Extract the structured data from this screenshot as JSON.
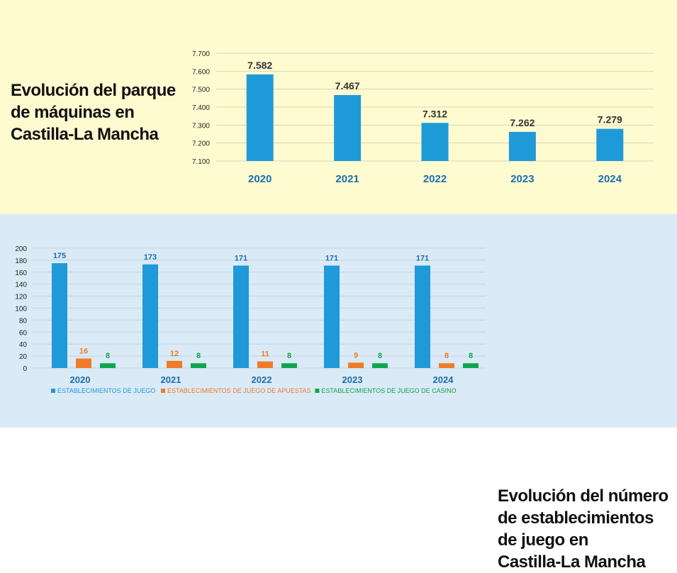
{
  "top_title_lines": [
    "Evolución del parque",
    "de máquinas en",
    "Castilla-La Mancha"
  ],
  "bottom_title_lines": [
    "Evolución del número",
    "de establecimientos",
    "de juego en",
    "Castilla-La Mancha"
  ],
  "colors": {
    "top_bg": "#fffbd0",
    "bottom_bg": "#daeaf6",
    "bar_blue": "#1f9ad9",
    "bar_orange": "#f07b28",
    "bar_green": "#10a54e",
    "year_label": "#1a6fb0"
  },
  "chart_data": [
    {
      "type": "bar",
      "categories": [
        "2020",
        "2021",
        "2022",
        "2023",
        "2024"
      ],
      "values": [
        7582,
        7467,
        7312,
        7262,
        7279
      ],
      "data_labels": [
        "7.582",
        "7.467",
        "7.312",
        "7.262",
        "7.279"
      ],
      "yticks": [
        "7.100",
        "7.200",
        "7.300",
        "7.400",
        "7.500",
        "7.600",
        "7.700"
      ],
      "ylim": [
        7100,
        7700
      ],
      "grid": true
    },
    {
      "type": "bar",
      "categories": [
        "2020",
        "2021",
        "2022",
        "2023",
        "2024"
      ],
      "series": [
        {
          "name": "ESTABLECIMIENTOS DE JUEGO",
          "values": [
            175,
            173,
            171,
            171,
            171
          ],
          "color": "#1f9ad9"
        },
        {
          "name": "ESTABLECIMIENTOS DE JUEGO DE APUESTAS",
          "values": [
            16,
            12,
            11,
            9,
            8
          ],
          "color": "#f07b28"
        },
        {
          "name": "ESTABLECIMIENTOS DE JUEGO DE CASINO",
          "values": [
            8,
            8,
            8,
            8,
            8
          ],
          "color": "#10a54e"
        }
      ],
      "yticks": [
        "0",
        "20",
        "40",
        "60",
        "80",
        "100",
        "120",
        "140",
        "160",
        "180",
        "200"
      ],
      "ylim": [
        0,
        200
      ],
      "grid": true,
      "legend": "bottom"
    }
  ]
}
